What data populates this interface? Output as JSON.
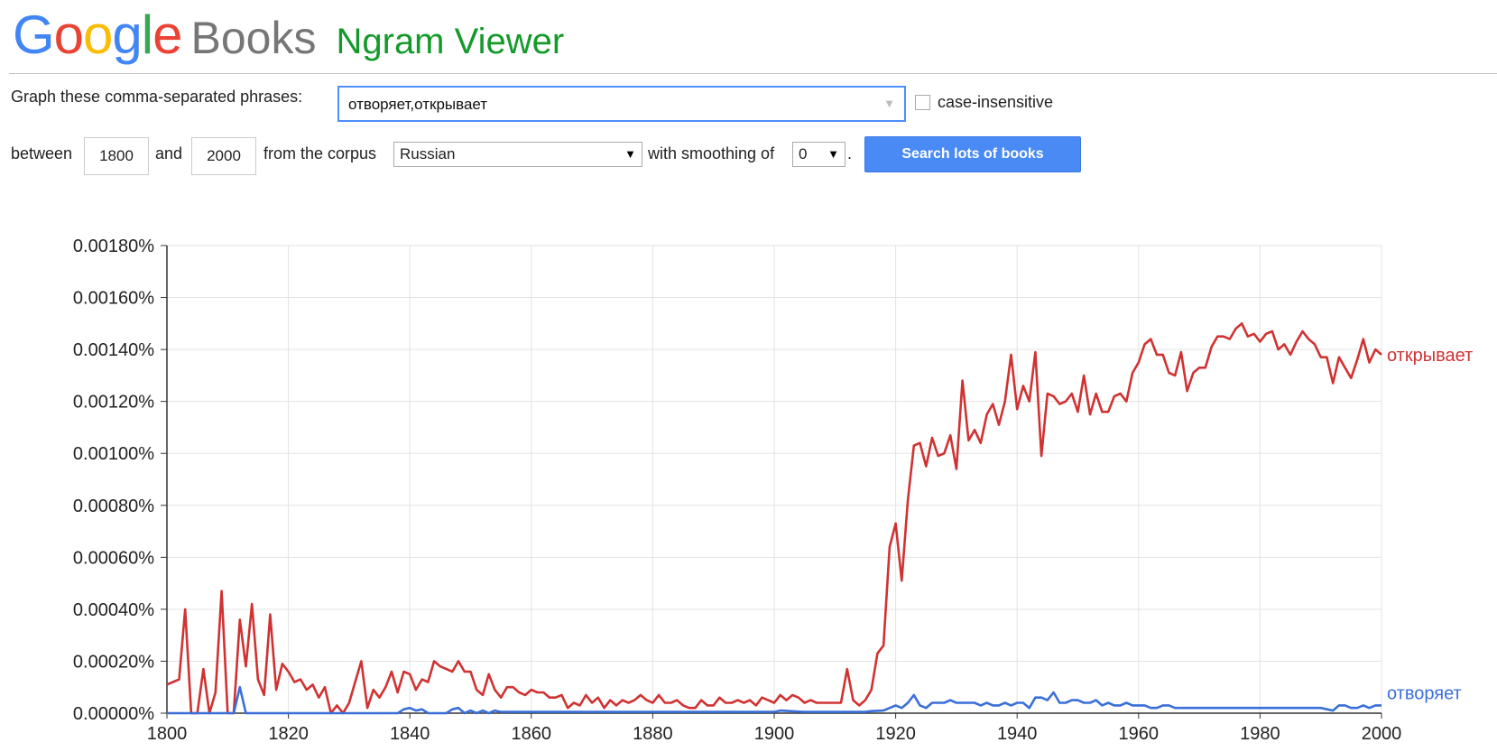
{
  "header": {
    "logo_letters": [
      {
        "ch": "G",
        "color": "#4285f4"
      },
      {
        "ch": "o",
        "color": "#ea4335"
      },
      {
        "ch": "o",
        "color": "#fbbc05"
      },
      {
        "ch": "g",
        "color": "#4285f4"
      },
      {
        "ch": "l",
        "color": "#34a853"
      },
      {
        "ch": "e",
        "color": "#ea4335"
      }
    ],
    "books": "Books",
    "ngram": "Ngram Viewer"
  },
  "form": {
    "phrases_label": "Graph these comma-separated phrases:",
    "query": "отворяет,открывает",
    "case_label": "case-insensitive",
    "between_label": "between",
    "start_year": "1800",
    "and_label": "and",
    "end_year": "2000",
    "corpus_label": "from the corpus",
    "corpus": "Russian",
    "smoothing_label": "with smoothing of",
    "smoothing": "0",
    "period": ".",
    "search_button": "Search lots of books"
  },
  "chart_data": {
    "type": "line",
    "xlim": [
      1800,
      2000
    ],
    "ylim": [
      0,
      0.0018
    ],
    "x_ticks": [
      "1800",
      "1820",
      "1840",
      "1860",
      "1880",
      "1900",
      "1920",
      "1940",
      "1960",
      "1980",
      "2000"
    ],
    "y_ticks": [
      "0.00000%",
      "0.00020%",
      "0.00040%",
      "0.00060%",
      "0.00080%",
      "0.00100%",
      "0.00120%",
      "0.00140%",
      "0.00160%",
      "0.00180%"
    ],
    "series": [
      {
        "name": "открывает",
        "color": "#d03232",
        "points": [
          [
            1800,
            0.00011
          ],
          [
            1801,
            0.00012
          ],
          [
            1802,
            0.00013
          ],
          [
            1803,
            0.0004
          ],
          [
            1804,
            0
          ],
          [
            1805,
            0
          ],
          [
            1806,
            0.00017
          ],
          [
            1807,
            0
          ],
          [
            1808,
            8e-05
          ],
          [
            1809,
            0.00047
          ],
          [
            1810,
            0
          ],
          [
            1811,
            0
          ],
          [
            1812,
            0.00036
          ],
          [
            1813,
            0.00018
          ],
          [
            1814,
            0.00042
          ],
          [
            1815,
            0.00013
          ],
          [
            1816,
            7e-05
          ],
          [
            1817,
            0.00038
          ],
          [
            1818,
            9e-05
          ],
          [
            1819,
            0.00019
          ],
          [
            1820,
            0.00016
          ],
          [
            1821,
            0.00012
          ],
          [
            1822,
            0.00013
          ],
          [
            1823,
            9e-05
          ],
          [
            1824,
            0.00011
          ],
          [
            1825,
            6e-05
          ],
          [
            1826,
            0.0001
          ],
          [
            1827,
            0
          ],
          [
            1828,
            3e-05
          ],
          [
            1829,
            0
          ],
          [
            1830,
            4e-05
          ],
          [
            1831,
            0.00012
          ],
          [
            1832,
            0.0002
          ],
          [
            1833,
            2e-05
          ],
          [
            1834,
            9e-05
          ],
          [
            1835,
            6e-05
          ],
          [
            1836,
            0.0001
          ],
          [
            1837,
            0.00016
          ],
          [
            1838,
            8e-05
          ],
          [
            1839,
            0.00016
          ],
          [
            1840,
            0.00015
          ],
          [
            1841,
            9e-05
          ],
          [
            1842,
            0.00013
          ],
          [
            1843,
            0.00012
          ],
          [
            1844,
            0.0002
          ],
          [
            1845,
            0.00018
          ],
          [
            1846,
            0.00017
          ],
          [
            1847,
            0.00016
          ],
          [
            1848,
            0.0002
          ],
          [
            1849,
            0.00016
          ],
          [
            1850,
            0.00016
          ],
          [
            1851,
            9e-05
          ],
          [
            1852,
            7e-05
          ],
          [
            1853,
            0.00015
          ],
          [
            1854,
            9e-05
          ],
          [
            1855,
            6e-05
          ],
          [
            1856,
            0.0001
          ],
          [
            1857,
            0.0001
          ],
          [
            1858,
            8e-05
          ],
          [
            1859,
            7e-05
          ],
          [
            1860,
            9e-05
          ],
          [
            1861,
            8e-05
          ],
          [
            1862,
            8e-05
          ],
          [
            1863,
            6e-05
          ],
          [
            1864,
            6e-05
          ],
          [
            1865,
            7e-05
          ],
          [
            1866,
            2e-05
          ],
          [
            1867,
            4e-05
          ],
          [
            1868,
            3e-05
          ],
          [
            1869,
            7e-05
          ],
          [
            1870,
            4e-05
          ],
          [
            1871,
            6e-05
          ],
          [
            1872,
            2e-05
          ],
          [
            1873,
            5e-05
          ],
          [
            1874,
            3e-05
          ],
          [
            1875,
            5e-05
          ],
          [
            1876,
            4e-05
          ],
          [
            1877,
            5e-05
          ],
          [
            1878,
            7e-05
          ],
          [
            1879,
            5e-05
          ],
          [
            1880,
            4e-05
          ],
          [
            1881,
            7e-05
          ],
          [
            1882,
            4e-05
          ],
          [
            1883,
            4e-05
          ],
          [
            1884,
            5e-05
          ],
          [
            1885,
            3e-05
          ],
          [
            1886,
            2e-05
          ],
          [
            1887,
            2e-05
          ],
          [
            1888,
            5e-05
          ],
          [
            1889,
            3e-05
          ],
          [
            1890,
            3e-05
          ],
          [
            1891,
            6e-05
          ],
          [
            1892,
            4e-05
          ],
          [
            1893,
            4e-05
          ],
          [
            1894,
            5e-05
          ],
          [
            1895,
            4e-05
          ],
          [
            1896,
            5e-05
          ],
          [
            1897,
            3e-05
          ],
          [
            1898,
            6e-05
          ],
          [
            1899,
            5e-05
          ],
          [
            1900,
            4e-05
          ],
          [
            1901,
            7e-05
          ],
          [
            1902,
            5e-05
          ],
          [
            1903,
            7e-05
          ],
          [
            1904,
            6e-05
          ],
          [
            1905,
            4e-05
          ],
          [
            1906,
            5e-05
          ],
          [
            1907,
            4e-05
          ],
          [
            1908,
            4e-05
          ],
          [
            1909,
            4e-05
          ],
          [
            1910,
            4e-05
          ],
          [
            1911,
            4e-05
          ],
          [
            1912,
            0.00017
          ],
          [
            1913,
            5e-05
          ],
          [
            1914,
            3e-05
          ],
          [
            1915,
            5e-05
          ],
          [
            1916,
            9e-05
          ],
          [
            1917,
            0.00023
          ],
          [
            1918,
            0.00026
          ],
          [
            1919,
            0.00064
          ],
          [
            1920,
            0.00073
          ],
          [
            1921,
            0.00051
          ],
          [
            1922,
            0.00082
          ],
          [
            1923,
            0.00103
          ],
          [
            1924,
            0.00104
          ],
          [
            1925,
            0.00095
          ],
          [
            1926,
            0.00106
          ],
          [
            1927,
            0.00099
          ],
          [
            1928,
            0.001
          ],
          [
            1929,
            0.00107
          ],
          [
            1930,
            0.00094
          ],
          [
            1931,
            0.00128
          ],
          [
            1932,
            0.00105
          ],
          [
            1933,
            0.00109
          ],
          [
            1934,
            0.00104
          ],
          [
            1935,
            0.00115
          ],
          [
            1936,
            0.00119
          ],
          [
            1937,
            0.00111
          ],
          [
            1938,
            0.0012
          ],
          [
            1939,
            0.00138
          ],
          [
            1940,
            0.00117
          ],
          [
            1941,
            0.00126
          ],
          [
            1942,
            0.0012
          ],
          [
            1943,
            0.00139
          ],
          [
            1944,
            0.00099
          ],
          [
            1945,
            0.00123
          ],
          [
            1946,
            0.00122
          ],
          [
            1947,
            0.00119
          ],
          [
            1948,
            0.0012
          ],
          [
            1949,
            0.00123
          ],
          [
            1950,
            0.00116
          ],
          [
            1951,
            0.0013
          ],
          [
            1952,
            0.00115
          ],
          [
            1953,
            0.00123
          ],
          [
            1954,
            0.00116
          ],
          [
            1955,
            0.00116
          ],
          [
            1956,
            0.00122
          ],
          [
            1957,
            0.00123
          ],
          [
            1958,
            0.0012
          ],
          [
            1959,
            0.00131
          ],
          [
            1960,
            0.00135
          ],
          [
            1961,
            0.00142
          ],
          [
            1962,
            0.00144
          ],
          [
            1963,
            0.00138
          ],
          [
            1964,
            0.00138
          ],
          [
            1965,
            0.00131
          ],
          [
            1966,
            0.0013
          ],
          [
            1967,
            0.00139
          ],
          [
            1968,
            0.00124
          ],
          [
            1969,
            0.00131
          ],
          [
            1970,
            0.00133
          ],
          [
            1971,
            0.00133
          ],
          [
            1972,
            0.00141
          ],
          [
            1973,
            0.00145
          ],
          [
            1974,
            0.00145
          ],
          [
            1975,
            0.00144
          ],
          [
            1976,
            0.00148
          ],
          [
            1977,
            0.0015
          ],
          [
            1978,
            0.00145
          ],
          [
            1979,
            0.00146
          ],
          [
            1980,
            0.00143
          ],
          [
            1981,
            0.00146
          ],
          [
            1982,
            0.00147
          ],
          [
            1983,
            0.0014
          ],
          [
            1984,
            0.00142
          ],
          [
            1985,
            0.00138
          ],
          [
            1986,
            0.00143
          ],
          [
            1987,
            0.00147
          ],
          [
            1988,
            0.00144
          ],
          [
            1989,
            0.00142
          ],
          [
            1990,
            0.00137
          ],
          [
            1991,
            0.00137
          ],
          [
            1992,
            0.00127
          ],
          [
            1993,
            0.00137
          ],
          [
            1994,
            0.00133
          ],
          [
            1995,
            0.00129
          ],
          [
            1996,
            0.00136
          ],
          [
            1997,
            0.00144
          ],
          [
            1998,
            0.00135
          ],
          [
            1999,
            0.0014
          ],
          [
            2000,
            0.00138
          ]
        ]
      },
      {
        "name": "отворяет",
        "color": "#3a6fd8",
        "points": [
          [
            1800,
            0
          ],
          [
            1810,
            0
          ],
          [
            1811,
            0
          ],
          [
            1812,
            0.0001
          ],
          [
            1813,
            0
          ],
          [
            1838,
            0
          ],
          [
            1839,
            1.5e-05
          ],
          [
            1840,
            2e-05
          ],
          [
            1841,
            1e-05
          ],
          [
            1842,
            1.5e-05
          ],
          [
            1843,
            0
          ],
          [
            1846,
            0
          ],
          [
            1847,
            1.5e-05
          ],
          [
            1848,
            2e-05
          ],
          [
            1849,
            0
          ],
          [
            1850,
            1e-05
          ],
          [
            1851,
            0
          ],
          [
            1852,
            1e-05
          ],
          [
            1853,
            0
          ],
          [
            1854,
            1e-05
          ],
          [
            1855,
            5e-06
          ],
          [
            1860,
            5e-06
          ],
          [
            1900,
            5e-06
          ],
          [
            1901,
            1e-05
          ],
          [
            1905,
            5e-06
          ],
          [
            1915,
            5e-06
          ],
          [
            1916,
            8e-06
          ],
          [
            1918,
            1e-05
          ],
          [
            1920,
            3e-05
          ],
          [
            1921,
            2e-05
          ],
          [
            1922,
            4e-05
          ],
          [
            1923,
            7e-05
          ],
          [
            1924,
            3e-05
          ],
          [
            1925,
            2e-05
          ],
          [
            1926,
            4e-05
          ],
          [
            1927,
            4e-05
          ],
          [
            1928,
            4e-05
          ],
          [
            1929,
            5e-05
          ],
          [
            1930,
            4e-05
          ],
          [
            1931,
            4e-05
          ],
          [
            1932,
            4e-05
          ],
          [
            1933,
            4e-05
          ],
          [
            1934,
            3e-05
          ],
          [
            1935,
            4e-05
          ],
          [
            1936,
            3e-05
          ],
          [
            1937,
            3e-05
          ],
          [
            1938,
            4e-05
          ],
          [
            1939,
            3e-05
          ],
          [
            1940,
            4e-05
          ],
          [
            1941,
            4e-05
          ],
          [
            1942,
            2e-05
          ],
          [
            1943,
            6e-05
          ],
          [
            1944,
            6e-05
          ],
          [
            1945,
            5e-05
          ],
          [
            1946,
            8e-05
          ],
          [
            1947,
            4e-05
          ],
          [
            1948,
            4e-05
          ],
          [
            1949,
            5e-05
          ],
          [
            1950,
            5e-05
          ],
          [
            1951,
            4e-05
          ],
          [
            1952,
            4e-05
          ],
          [
            1953,
            5e-05
          ],
          [
            1954,
            3e-05
          ],
          [
            1955,
            4e-05
          ],
          [
            1956,
            3e-05
          ],
          [
            1957,
            3e-05
          ],
          [
            1958,
            4e-05
          ],
          [
            1959,
            3e-05
          ],
          [
            1960,
            3e-05
          ],
          [
            1961,
            3e-05
          ],
          [
            1962,
            2e-05
          ],
          [
            1963,
            2e-05
          ],
          [
            1964,
            3e-05
          ],
          [
            1965,
            3e-05
          ],
          [
            1966,
            2e-05
          ],
          [
            1967,
            2e-05
          ],
          [
            1968,
            2e-05
          ],
          [
            1969,
            2e-05
          ],
          [
            1970,
            2e-05
          ],
          [
            1975,
            2e-05
          ],
          [
            1980,
            2e-05
          ],
          [
            1985,
            2e-05
          ],
          [
            1990,
            2e-05
          ],
          [
            1992,
            1e-05
          ],
          [
            1993,
            3e-05
          ],
          [
            1994,
            3e-05
          ],
          [
            1995,
            2e-05
          ],
          [
            1996,
            2e-05
          ],
          [
            1997,
            3e-05
          ],
          [
            1998,
            2e-05
          ],
          [
            1999,
            3e-05
          ],
          [
            2000,
            3e-05
          ]
        ]
      }
    ]
  }
}
